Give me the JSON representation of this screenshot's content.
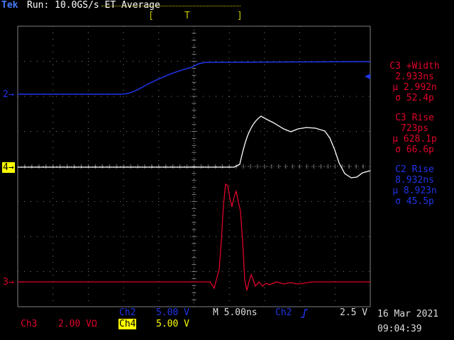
{
  "header": {
    "brand": "Tek",
    "status": "Run: 10.0GS/s ET Average",
    "trigger_left_bracket": "[",
    "trigger_marker": "T",
    "trigger_right_bracket": "]"
  },
  "channel_markers": {
    "ch2": "2",
    "ch4": "4",
    "ch3": "3"
  },
  "measurements": [
    {
      "title": "C3 +Width",
      "value": "2.933ns",
      "mean": "μ 2.992n",
      "sigma": "σ 52.4p",
      "color": "#e0002a"
    },
    {
      "title": "C3 Rise",
      "value": "723ps",
      "mean": "μ 628.1p",
      "sigma": "σ 66.6p",
      "color": "#e0002a"
    },
    {
      "title": "C2 Rise",
      "value": "8.932ns",
      "mean": "μ 8.923n",
      "sigma": "σ 45.5p",
      "color": "#1530e0"
    }
  ],
  "bottom": {
    "ch2_label": "Ch2",
    "ch2_scale": "5.00 V",
    "timebase": "M 5.00ns",
    "trig_source": "Ch2",
    "trig_slope_icon": "rising-edge-icon",
    "trig_level": "2.5 V",
    "ch3_label": "Ch3",
    "ch3_scale": "2.00 VΩ",
    "ch4_label": "Ch4",
    "ch4_scale": "5.00 V",
    "date": "16 Mar 2021",
    "time": "09:04:39"
  },
  "colors": {
    "ch2": "#1f35e8",
    "ch3": "#e0002a",
    "ch4": "#ffffff",
    "trigger": "#c8c800",
    "grid": "#808080"
  }
}
